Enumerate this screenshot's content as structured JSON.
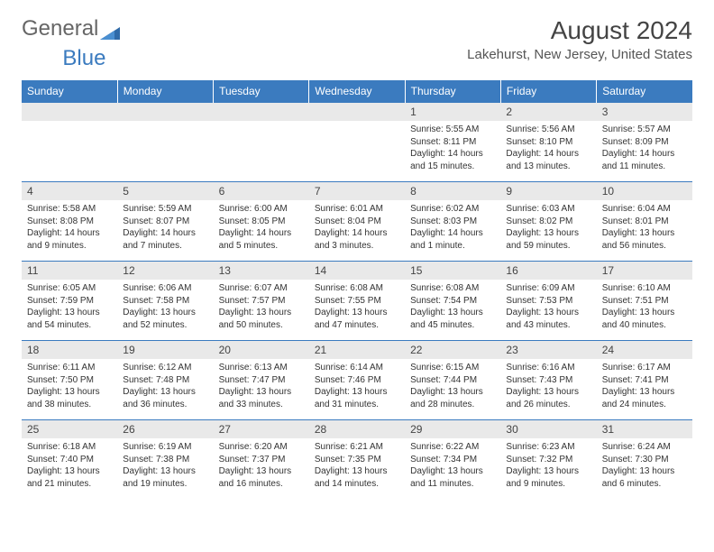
{
  "logo": {
    "textA": "General",
    "textB": "Blue"
  },
  "title": "August 2024",
  "location": "Lakehurst, New Jersey, United States",
  "header_bg": "#3b7bbf",
  "daynum_bg": "#e9e9e9",
  "border_color": "#3b7bbf",
  "weekdays": [
    "Sunday",
    "Monday",
    "Tuesday",
    "Wednesday",
    "Thursday",
    "Friday",
    "Saturday"
  ],
  "weeks": [
    [
      null,
      null,
      null,
      null,
      {
        "n": "1",
        "sr": "Sunrise: 5:55 AM",
        "ss": "Sunset: 8:11 PM",
        "dl": "Daylight: 14 hours and 15 minutes."
      },
      {
        "n": "2",
        "sr": "Sunrise: 5:56 AM",
        "ss": "Sunset: 8:10 PM",
        "dl": "Daylight: 14 hours and 13 minutes."
      },
      {
        "n": "3",
        "sr": "Sunrise: 5:57 AM",
        "ss": "Sunset: 8:09 PM",
        "dl": "Daylight: 14 hours and 11 minutes."
      }
    ],
    [
      {
        "n": "4",
        "sr": "Sunrise: 5:58 AM",
        "ss": "Sunset: 8:08 PM",
        "dl": "Daylight: 14 hours and 9 minutes."
      },
      {
        "n": "5",
        "sr": "Sunrise: 5:59 AM",
        "ss": "Sunset: 8:07 PM",
        "dl": "Daylight: 14 hours and 7 minutes."
      },
      {
        "n": "6",
        "sr": "Sunrise: 6:00 AM",
        "ss": "Sunset: 8:05 PM",
        "dl": "Daylight: 14 hours and 5 minutes."
      },
      {
        "n": "7",
        "sr": "Sunrise: 6:01 AM",
        "ss": "Sunset: 8:04 PM",
        "dl": "Daylight: 14 hours and 3 minutes."
      },
      {
        "n": "8",
        "sr": "Sunrise: 6:02 AM",
        "ss": "Sunset: 8:03 PM",
        "dl": "Daylight: 14 hours and 1 minute."
      },
      {
        "n": "9",
        "sr": "Sunrise: 6:03 AM",
        "ss": "Sunset: 8:02 PM",
        "dl": "Daylight: 13 hours and 59 minutes."
      },
      {
        "n": "10",
        "sr": "Sunrise: 6:04 AM",
        "ss": "Sunset: 8:01 PM",
        "dl": "Daylight: 13 hours and 56 minutes."
      }
    ],
    [
      {
        "n": "11",
        "sr": "Sunrise: 6:05 AM",
        "ss": "Sunset: 7:59 PM",
        "dl": "Daylight: 13 hours and 54 minutes."
      },
      {
        "n": "12",
        "sr": "Sunrise: 6:06 AM",
        "ss": "Sunset: 7:58 PM",
        "dl": "Daylight: 13 hours and 52 minutes."
      },
      {
        "n": "13",
        "sr": "Sunrise: 6:07 AM",
        "ss": "Sunset: 7:57 PM",
        "dl": "Daylight: 13 hours and 50 minutes."
      },
      {
        "n": "14",
        "sr": "Sunrise: 6:08 AM",
        "ss": "Sunset: 7:55 PM",
        "dl": "Daylight: 13 hours and 47 minutes."
      },
      {
        "n": "15",
        "sr": "Sunrise: 6:08 AM",
        "ss": "Sunset: 7:54 PM",
        "dl": "Daylight: 13 hours and 45 minutes."
      },
      {
        "n": "16",
        "sr": "Sunrise: 6:09 AM",
        "ss": "Sunset: 7:53 PM",
        "dl": "Daylight: 13 hours and 43 minutes."
      },
      {
        "n": "17",
        "sr": "Sunrise: 6:10 AM",
        "ss": "Sunset: 7:51 PM",
        "dl": "Daylight: 13 hours and 40 minutes."
      }
    ],
    [
      {
        "n": "18",
        "sr": "Sunrise: 6:11 AM",
        "ss": "Sunset: 7:50 PM",
        "dl": "Daylight: 13 hours and 38 minutes."
      },
      {
        "n": "19",
        "sr": "Sunrise: 6:12 AM",
        "ss": "Sunset: 7:48 PM",
        "dl": "Daylight: 13 hours and 36 minutes."
      },
      {
        "n": "20",
        "sr": "Sunrise: 6:13 AM",
        "ss": "Sunset: 7:47 PM",
        "dl": "Daylight: 13 hours and 33 minutes."
      },
      {
        "n": "21",
        "sr": "Sunrise: 6:14 AM",
        "ss": "Sunset: 7:46 PM",
        "dl": "Daylight: 13 hours and 31 minutes."
      },
      {
        "n": "22",
        "sr": "Sunrise: 6:15 AM",
        "ss": "Sunset: 7:44 PM",
        "dl": "Daylight: 13 hours and 28 minutes."
      },
      {
        "n": "23",
        "sr": "Sunrise: 6:16 AM",
        "ss": "Sunset: 7:43 PM",
        "dl": "Daylight: 13 hours and 26 minutes."
      },
      {
        "n": "24",
        "sr": "Sunrise: 6:17 AM",
        "ss": "Sunset: 7:41 PM",
        "dl": "Daylight: 13 hours and 24 minutes."
      }
    ],
    [
      {
        "n": "25",
        "sr": "Sunrise: 6:18 AM",
        "ss": "Sunset: 7:40 PM",
        "dl": "Daylight: 13 hours and 21 minutes."
      },
      {
        "n": "26",
        "sr": "Sunrise: 6:19 AM",
        "ss": "Sunset: 7:38 PM",
        "dl": "Daylight: 13 hours and 19 minutes."
      },
      {
        "n": "27",
        "sr": "Sunrise: 6:20 AM",
        "ss": "Sunset: 7:37 PM",
        "dl": "Daylight: 13 hours and 16 minutes."
      },
      {
        "n": "28",
        "sr": "Sunrise: 6:21 AM",
        "ss": "Sunset: 7:35 PM",
        "dl": "Daylight: 13 hours and 14 minutes."
      },
      {
        "n": "29",
        "sr": "Sunrise: 6:22 AM",
        "ss": "Sunset: 7:34 PM",
        "dl": "Daylight: 13 hours and 11 minutes."
      },
      {
        "n": "30",
        "sr": "Sunrise: 6:23 AM",
        "ss": "Sunset: 7:32 PM",
        "dl": "Daylight: 13 hours and 9 minutes."
      },
      {
        "n": "31",
        "sr": "Sunrise: 6:24 AM",
        "ss": "Sunset: 7:30 PM",
        "dl": "Daylight: 13 hours and 6 minutes."
      }
    ]
  ]
}
